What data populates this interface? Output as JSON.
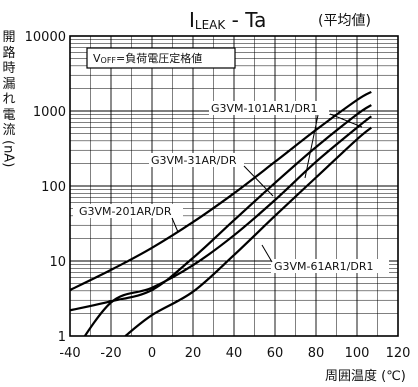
{
  "chart_data": {
    "type": "line",
    "title_main": "I",
    "title_sub": "LEAK",
    "title_rest": " - Ta",
    "title_note": "(平均値)",
    "ylabel_chars": [
      "開",
      "路",
      "時",
      "漏",
      "れ",
      "電",
      "流"
    ],
    "ylabel_unit": "(nA)",
    "xlabel": "周囲温度 (℃)",
    "condition_box": {
      "prefix": "V",
      "sub": "OFF",
      "text": "=負荷電圧定格値"
    },
    "xlim": [
      -40,
      120
    ],
    "ylim": [
      1,
      10000
    ],
    "yscale": "log",
    "xticks": [
      -40,
      -20,
      0,
      20,
      40,
      60,
      80,
      100,
      120
    ],
    "yticks": [
      {
        "value": 1,
        "label": "1"
      },
      {
        "value": 10,
        "label": "10"
      },
      {
        "value": 100,
        "label": "100"
      },
      {
        "value": 1000,
        "label": "1000"
      },
      {
        "value": 10000,
        "label": "10000"
      }
    ],
    "grid": true,
    "series": [
      {
        "name": "G3VM-101AR1/DR1",
        "x": [
          -40,
          -20,
          0,
          20,
          40,
          60,
          80,
          100,
          107
        ],
        "y": [
          4.1,
          7.6,
          15,
          33,
          80,
          210,
          560,
          1400,
          1800
        ]
      },
      {
        "name": "G3VM-31AR/DR",
        "x": [
          -40,
          -20,
          0,
          20,
          40,
          60,
          80,
          100,
          107
        ],
        "y": [
          2.2,
          2.9,
          4.1,
          11,
          35,
          110,
          330,
          900,
          1200
        ]
      },
      {
        "name": "G3VM-201AR/DR",
        "x": [
          -40,
          -20,
          0,
          20,
          40,
          60,
          80,
          100,
          107
        ],
        "y": [
          0.5,
          2.8,
          4.4,
          8.8,
          22,
          65,
          210,
          600,
          850
        ]
      },
      {
        "name": "G3VM-61AR1/DR1",
        "x": [
          -13,
          0,
          20,
          40,
          60,
          80,
          100,
          107
        ],
        "y": [
          1,
          1.9,
          3.9,
          12,
          40,
          130,
          420,
          600
        ]
      }
    ],
    "annotations": [
      {
        "series": "G3VM-101AR1/DR1",
        "label": "G3VM-101AR1/DR1"
      },
      {
        "series": "G3VM-31AR/DR",
        "label": "G3VM-31AR/DR"
      },
      {
        "series": "G3VM-201AR/DR",
        "label": "G3VM-201AR/DR"
      },
      {
        "series": "G3VM-61AR1/DR1",
        "label": "G3VM-61AR1/DR1"
      }
    ]
  }
}
